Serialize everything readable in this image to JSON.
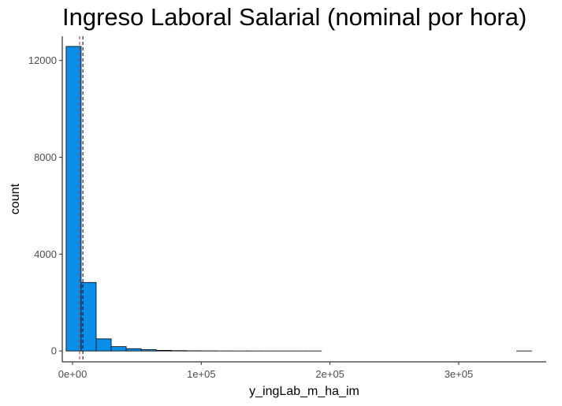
{
  "chart_data": {
    "type": "bar",
    "title": "Ingreso Laboral Salarial (nominal por hora)",
    "xlabel": "y_ingLab_m_ha_im",
    "ylabel": "count",
    "xlim": [
      -8000,
      368000
    ],
    "ylim": [
      -450,
      13000
    ],
    "x_ticks": [
      0,
      100000,
      200000,
      300000
    ],
    "x_tick_labels": [
      "0e+00",
      "1e+05",
      "2e+05",
      "3e+05"
    ],
    "y_ticks": [
      0,
      4000,
      8000,
      12000
    ],
    "y_tick_labels": [
      "0",
      "4000",
      "8000",
      "12000"
    ],
    "bin_edges": [
      -5000,
      6667,
      18333,
      30000,
      41667,
      53333,
      65000,
      76667,
      88333,
      100000,
      111667,
      123333,
      135000,
      146667,
      158333,
      170000,
      181667,
      193333,
      205000,
      216667,
      228333,
      240000,
      251667,
      263333,
      275000,
      286667,
      298333,
      310000,
      321667,
      333333,
      345000,
      356667
    ],
    "values": [
      12580,
      2830,
      500,
      180,
      95,
      55,
      25,
      15,
      8,
      5,
      3,
      2,
      2,
      1,
      1,
      1,
      1,
      0,
      0,
      0,
      0,
      0,
      0,
      0,
      0,
      0,
      0,
      0,
      0,
      0,
      1
    ],
    "vlines": [
      {
        "x": 5500,
        "color": "#e41a1c",
        "style": "dashed"
      },
      {
        "x": 8000,
        "color": "#000000",
        "style": "dashed"
      }
    ],
    "bar_fill": "#0a8fe8",
    "bar_stroke": "#000000",
    "grid": false
  }
}
